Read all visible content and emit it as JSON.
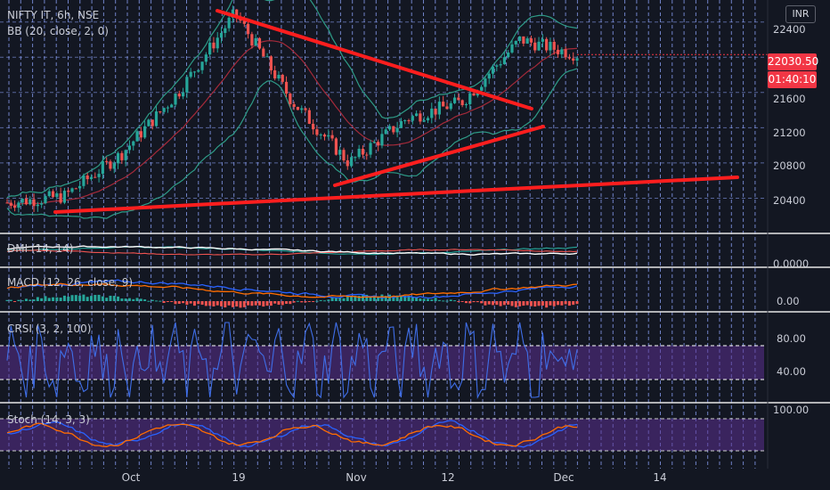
{
  "header": {
    "symbol_line": "NIFTY IT, 6h, NSE",
    "indicator_bb": "BB (20, close, 2, 0)",
    "currency": "INR"
  },
  "price_tags": {
    "last_price": "22030.50",
    "countdown": "01:40:10"
  },
  "panes": {
    "dmi_label": "DMI (14, 14)",
    "dmi_tick": "0.0000",
    "macd_label": "MACD (12, 26, close, 9)",
    "macd_tick": "0.00",
    "crsi_label": "CRSI (3, 2, 100)",
    "crsi_ticks": [
      "80.00",
      "40.00"
    ],
    "stoch_label": "Stoch (14, 3, 3)",
    "stoch_tick": "100.00"
  },
  "colors": {
    "background": "#131722",
    "bull": "#26a69a",
    "bear": "#ef5350",
    "trendline": "#ff1e1e",
    "grid": "#8fa6ff",
    "bb_upper_lower": "#2e9b87",
    "bb_basis": "#a52a3a",
    "last_price_tag": "#f23645",
    "countdown_tag": "#f23645",
    "crsi_band": "#5b2f8f",
    "stoch_band": "#5b2f8f",
    "macd_line": "#2962ff",
    "signal_line": "#ff6d00",
    "crsi_line": "#3f6ee8",
    "stoch_k": "#2962ff",
    "stoch_d": "#ff6d00",
    "dmi_plus": "#26a69a",
    "dmi_minus": "#ef5350",
    "adx": "#ffffff"
  },
  "chart_data": {
    "type": "line",
    "subtype": "candlestick",
    "title": "NIFTY IT, 6h, NSE",
    "y_ticks": [
      22400,
      22000,
      21600,
      21200,
      20800,
      20400
    ],
    "ylim": [
      20000,
      22650
    ],
    "x_ticks": [
      "Oct",
      "19",
      "Nov",
      "12",
      "Dec",
      "14"
    ],
    "last_price": 22030.5,
    "grid": true,
    "series": [
      {
        "name": "BB (20, close, 2, 0)",
        "approx_close_path": [
          {
            "x": "start",
            "y": 20350
          },
          {
            "x": "Oct",
            "y": 20420
          },
          {
            "x": "Oct",
            "y": 20900
          },
          {
            "x": "before 19",
            "y": 21600
          },
          {
            "x": "before 19",
            "y": 22500
          },
          {
            "x": "19",
            "y": 21500
          },
          {
            "x": "Nov",
            "y": 20800
          },
          {
            "x": "12",
            "y": 21300
          },
          {
            "x": "12",
            "y": 21500
          },
          {
            "x": "Dec",
            "y": 22200
          },
          {
            "x": "Dec",
            "y": 22030
          }
        ]
      }
    ],
    "trendlines": [
      {
        "from": [
          244,
          12
        ],
        "to": [
          597,
          122
        ]
      },
      {
        "from": [
          376,
          208
        ],
        "to": [
          610,
          142
        ]
      },
      {
        "from": [
          62,
          238
        ],
        "to": [
          828,
          199
        ]
      }
    ]
  }
}
